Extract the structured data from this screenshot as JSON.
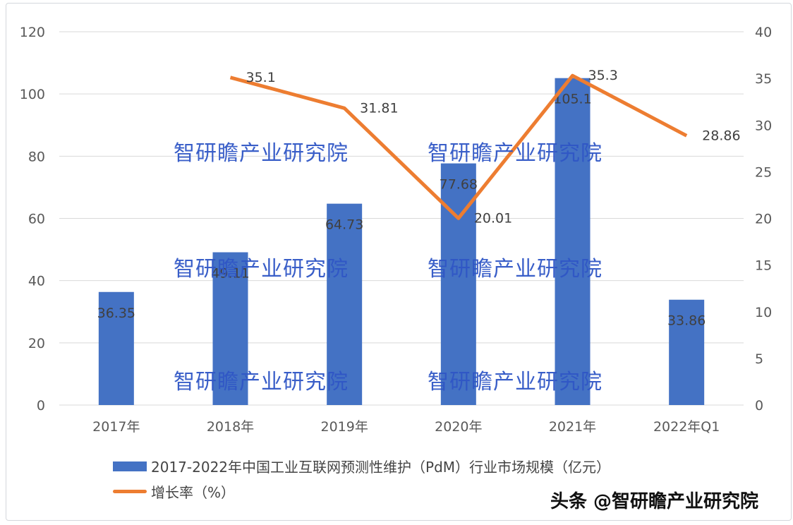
{
  "chart_data": {
    "type": "bar+line",
    "categories": [
      "2017年",
      "2018年",
      "2019年",
      "2020年",
      "2021年",
      "2022年Q1"
    ],
    "series": [
      {
        "name": "2017-2022年中国工业互联网预测性维护（PdM）行业市场规模（亿元）",
        "type": "bar",
        "axis": "left",
        "color": "#4472c4",
        "values": [
          36.35,
          49.11,
          64.73,
          77.68,
          105.1,
          33.86
        ]
      },
      {
        "name": "增长率（%）",
        "type": "line",
        "axis": "right",
        "color": "#ed7d31",
        "values": [
          null,
          35.1,
          31.81,
          20.01,
          35.3,
          28.86
        ]
      }
    ],
    "left_axis": {
      "ylim": [
        0,
        120
      ],
      "ticks": [
        "0",
        "20",
        "40",
        "60",
        "80",
        "100",
        "120"
      ]
    },
    "right_axis": {
      "ylim": [
        0,
        40
      ],
      "ticks": [
        "0",
        "5",
        "10",
        "15",
        "20",
        "25",
        "30",
        "35",
        "40"
      ]
    },
    "grid": true,
    "legend_position": "bottom"
  },
  "legend": {
    "bar_label": "2017-2022年中国工业互联网预测性维护（PdM）行业市场规模（亿元）",
    "line_label": "增长率（%）"
  },
  "watermark": "智研瞻产业研究院",
  "credit": "头条 @智研瞻产业研究院"
}
